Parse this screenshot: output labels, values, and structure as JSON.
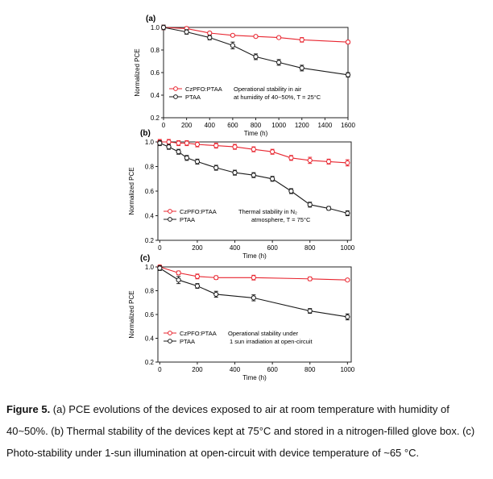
{
  "figure": {
    "caption_label": "Figure 5.",
    "caption_text": " (a) PCE evolutions of the devices exposed to air at room temperature with humidity of 40~50%. (b) Thermal stability of the devices kept at 75°C and stored in a nitrogen-filled glove box. (c) Photo-stability under 1-sun illumination at open-circuit with device temperature of ~65 °C."
  },
  "style": {
    "red": "#e8252f",
    "black": "#1a1a1a",
    "axis": "#222222"
  },
  "chart_data": [
    {
      "panel": "(a)",
      "type": "line",
      "xlabel": "Time (h)",
      "ylabel": "Normalized PCE",
      "xlim": [
        0,
        1600
      ],
      "ylim": [
        0.2,
        1.0
      ],
      "xticks": [
        0,
        200,
        400,
        600,
        800,
        1000,
        1200,
        1400,
        1600
      ],
      "yticks": [
        0.2,
        0.4,
        0.6,
        0.8,
        1.0
      ],
      "annotation": [
        "Operational stability in air",
        "at humidity of 40~50%, T = 25°C"
      ],
      "legend_position": "lower-left",
      "series": [
        {
          "name": "CzPFO:PTAA",
          "color": "#e8252f",
          "x": [
            0,
            200,
            400,
            600,
            800,
            1000,
            1200,
            1600
          ],
          "y": [
            1.0,
            0.99,
            0.95,
            0.93,
            0.92,
            0.91,
            0.89,
            0.87
          ],
          "err": [
            0.02,
            0.015,
            0.01,
            0.01,
            0.01,
            0.01,
            0.02,
            0.015
          ]
        },
        {
          "name": "PTAA",
          "color": "#1a1a1a",
          "x": [
            0,
            200,
            400,
            600,
            800,
            1000,
            1200,
            1600
          ],
          "y": [
            1.0,
            0.96,
            0.91,
            0.84,
            0.74,
            0.69,
            0.64,
            0.58
          ],
          "err": [
            0.02,
            0.02,
            0.02,
            0.03,
            0.025,
            0.025,
            0.025,
            0.02
          ]
        }
      ]
    },
    {
      "panel": "(b)",
      "type": "line",
      "xlabel": "Time (h)",
      "ylabel": "Normalized PCE",
      "xlim": [
        -10,
        1020
      ],
      "ylim": [
        0.2,
        1.0
      ],
      "xticks": [
        0,
        200,
        400,
        600,
        800,
        1000
      ],
      "yticks": [
        0.2,
        0.4,
        0.6,
        0.8,
        1.0
      ],
      "annotation": [
        "Thermal stability in N₂",
        "atmosphere, T = 75°C"
      ],
      "legend_position": "lower-left",
      "series": [
        {
          "name": "CzPFO:PTAA",
          "color": "#e8252f",
          "x": [
            0,
            48,
            100,
            144,
            200,
            300,
            400,
            500,
            600,
            700,
            800,
            900,
            1000
          ],
          "y": [
            1.0,
            1.0,
            0.99,
            0.99,
            0.98,
            0.97,
            0.96,
            0.94,
            0.92,
            0.87,
            0.85,
            0.84,
            0.83
          ],
          "err": [
            0.02,
            0.02,
            0.02,
            0.02,
            0.02,
            0.02,
            0.02,
            0.02,
            0.02,
            0.02,
            0.025,
            0.02,
            0.025
          ]
        },
        {
          "name": "PTAA",
          "color": "#1a1a1a",
          "x": [
            0,
            48,
            100,
            144,
            200,
            300,
            400,
            500,
            600,
            700,
            800,
            900,
            1000
          ],
          "y": [
            0.99,
            0.96,
            0.92,
            0.87,
            0.84,
            0.79,
            0.75,
            0.73,
            0.7,
            0.6,
            0.49,
            0.46,
            0.42
          ],
          "err": [
            0.02,
            0.02,
            0.02,
            0.02,
            0.02,
            0.02,
            0.02,
            0.02,
            0.02,
            0.02,
            0.02,
            0.015,
            0.02
          ]
        }
      ]
    },
    {
      "panel": "(c)",
      "type": "line",
      "xlabel": "Time (h)",
      "ylabel": "Normalized PCE",
      "xlim": [
        -10,
        1020
      ],
      "ylim": [
        0.2,
        1.0
      ],
      "xticks": [
        0,
        200,
        400,
        600,
        800,
        1000
      ],
      "yticks": [
        0.2,
        0.4,
        0.6,
        0.8,
        1.0
      ],
      "annotation": [
        "Operational stability under",
        "1 sun irradiation at open-circuit"
      ],
      "legend_position": "lower-left",
      "series": [
        {
          "name": "CzPFO:PTAA",
          "color": "#e8252f",
          "x": [
            0,
            100,
            200,
            300,
            500,
            800,
            1000
          ],
          "y": [
            1.0,
            0.95,
            0.92,
            0.91,
            0.91,
            0.9,
            0.89
          ],
          "err": [
            0.015,
            0.015,
            0.02,
            0.015,
            0.02,
            0.015,
            0.01
          ]
        },
        {
          "name": "PTAA",
          "color": "#1a1a1a",
          "x": [
            0,
            100,
            200,
            300,
            500,
            800,
            1000
          ],
          "y": [
            0.99,
            0.89,
            0.84,
            0.77,
            0.74,
            0.63,
            0.58
          ],
          "err": [
            0.02,
            0.03,
            0.02,
            0.025,
            0.025,
            0.02,
            0.025
          ]
        }
      ]
    }
  ]
}
